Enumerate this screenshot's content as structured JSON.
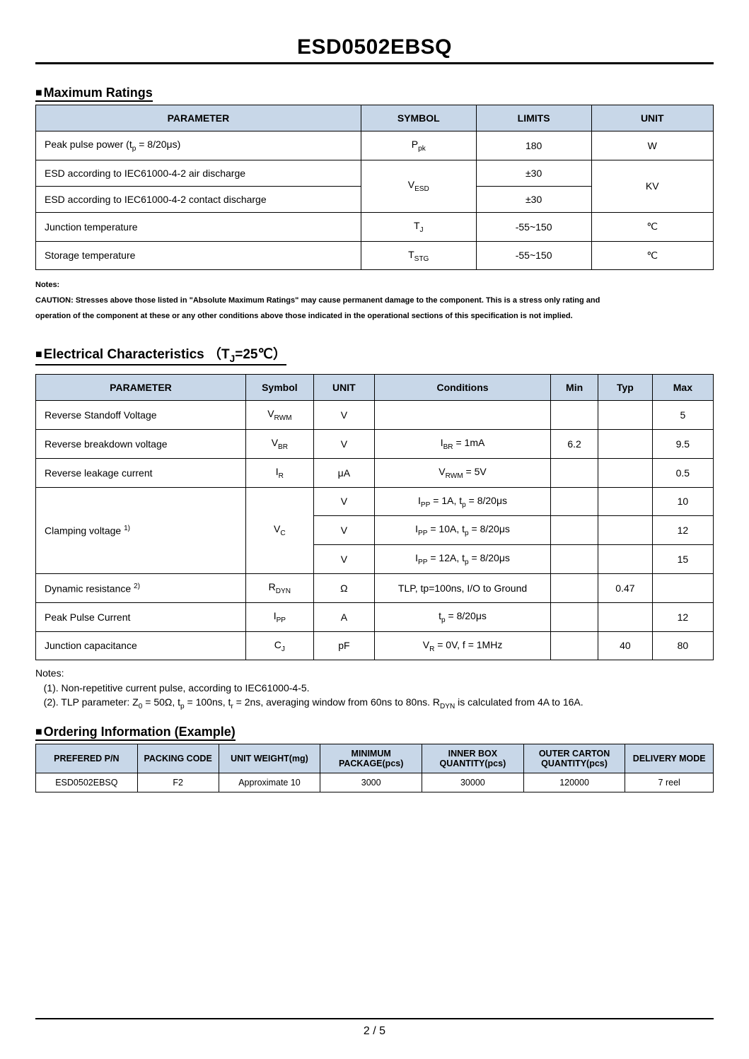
{
  "title": "ESD0502EBSQ",
  "sections": {
    "maxRatings": {
      "heading": "Maximum Ratings",
      "headers": {
        "parameter": "PARAMETER",
        "symbol": "SYMBOL",
        "limits": "LIMITS",
        "unit": "UNIT"
      },
      "rows": [
        {
          "parameter_html": "Peak pulse power (t<sub>p</sub> = 8/20μs)",
          "symbol_html": "P<sub>pk</sub>",
          "limits": "180",
          "unit": "W"
        },
        {
          "parameter_html": "ESD according to IEC61000-4-2 air discharge",
          "symbol_html": "V<sub>ESD</sub>",
          "limits": "±30",
          "unit": "KV",
          "symbol_rowspan": 2,
          "unit_rowspan": 2
        },
        {
          "parameter_html": "ESD according to IEC61000-4-2 contact discharge",
          "limits": "±30"
        },
        {
          "parameter_html": "Junction temperature",
          "symbol_html": "T<sub>J</sub>",
          "limits": "-55~150",
          "unit": "℃"
        },
        {
          "parameter_html": "Storage temperature",
          "symbol_html": "T<sub>STG</sub>",
          "limits": "-55~150",
          "unit": "℃"
        }
      ],
      "notes": [
        "Notes:",
        "CAUTION: Stresses above those listed in \"Absolute Maximum Ratings\" may cause permanent damage to the component. This is a stress only rating and",
        "operation of the component at these or any other conditions above those indicated in the operational sections of this specification is not implied."
      ]
    },
    "elec": {
      "heading_html": "Electrical Characteristics （T<sub>J</sub>=25℃）",
      "headers": {
        "parameter": "PARAMETER",
        "symbol": "Symbol",
        "unit": "UNIT",
        "conditions": "Conditions",
        "min": "Min",
        "typ": "Typ",
        "max": "Max"
      },
      "rows": [
        {
          "parameter_html": "Reverse Standoff Voltage",
          "symbol_html": "V<sub>RWM</sub>",
          "unit": "V",
          "conditions_html": "",
          "min": "",
          "typ": "",
          "max": "5"
        },
        {
          "parameter_html": "Reverse breakdown voltage",
          "symbol_html": "V<sub>BR</sub>",
          "unit": "V",
          "conditions_html": "I<sub>BR</sub> = 1mA",
          "min": "6.2",
          "typ": "",
          "max": "9.5"
        },
        {
          "parameter_html": "Reverse leakage current",
          "symbol_html": "I<sub>R</sub>",
          "unit": "μA",
          "conditions_html": "V<sub>RWM</sub> = 5V",
          "min": "",
          "typ": "",
          "max": "0.5"
        },
        {
          "parameter_html": "Clamping voltage <sup>1)</sup>",
          "symbol_html": "V<sub>C</sub>",
          "unit": "V",
          "conditions_html": "I<sub>PP</sub> = 1A, t<sub>p</sub> = 8/20μs",
          "min": "",
          "typ": "",
          "max": "10",
          "p_rowspan": 3,
          "s_rowspan": 3
        },
        {
          "unit": "V",
          "conditions_html": "I<sub>PP</sub> = 10A, t<sub>p</sub> = 8/20μs",
          "min": "",
          "typ": "",
          "max": "12"
        },
        {
          "unit": "V",
          "conditions_html": "I<sub>PP</sub> = 12A, t<sub>p</sub> = 8/20μs",
          "min": "",
          "typ": "",
          "max": "15"
        },
        {
          "parameter_html": "Dynamic resistance <sup>2)</sup>",
          "symbol_html": "R<sub>DYN</sub>",
          "unit": "Ω",
          "conditions_html": "TLP, tp=100ns, I/O to Ground",
          "min": "",
          "typ": "0.47",
          "max": ""
        },
        {
          "parameter_html": "Peak Pulse Current",
          "symbol_html": "I<sub>PP</sub>",
          "unit": "A",
          "conditions_html": "t<sub>p</sub> = 8/20μs",
          "min": "",
          "typ": "",
          "max": "12"
        },
        {
          "parameter_html": "Junction capacitance",
          "symbol_html": "C<sub>J</sub>",
          "unit": "pF",
          "conditions_html": "V<sub>R</sub> = 0V, f = 1MHz",
          "min": "",
          "typ": "40",
          "max": "80"
        }
      ],
      "notes_lines_html": [
        "Notes:",
        "&nbsp;&nbsp;&nbsp;(1). Non-repetitive current pulse, according to IEC61000-4-5.",
        "&nbsp;&nbsp;&nbsp;(2). TLP parameter: Z<sub>0</sub> = 50Ω, t<sub>p</sub> = 100ns, t<sub>r</sub> = 2ns, averaging window from 60ns to 80ns. R<sub>DYN</sub> is calculated from 4A to 16A."
      ]
    },
    "ordering": {
      "heading": "Ordering Information (Example)",
      "headers": [
        "PREFERED P/N",
        "PACKING CODE",
        "UNIT WEIGHT(mg)",
        "MINIMUM PACKAGE(pcs)",
        "INNER BOX QUANTITY(pcs)",
        "OUTER CARTON QUANTITY(pcs)",
        "DELIVERY MODE"
      ],
      "row": [
        "ESD0502EBSQ",
        "F2",
        "Approximate 10",
        "3000",
        "30000",
        "120000",
        "7 reel"
      ]
    }
  },
  "footer": "2 / 5",
  "colors": {
    "header_bg": "#c8d7e8",
    "border": "#000000",
    "text": "#000000",
    "bg": "#ffffff"
  }
}
